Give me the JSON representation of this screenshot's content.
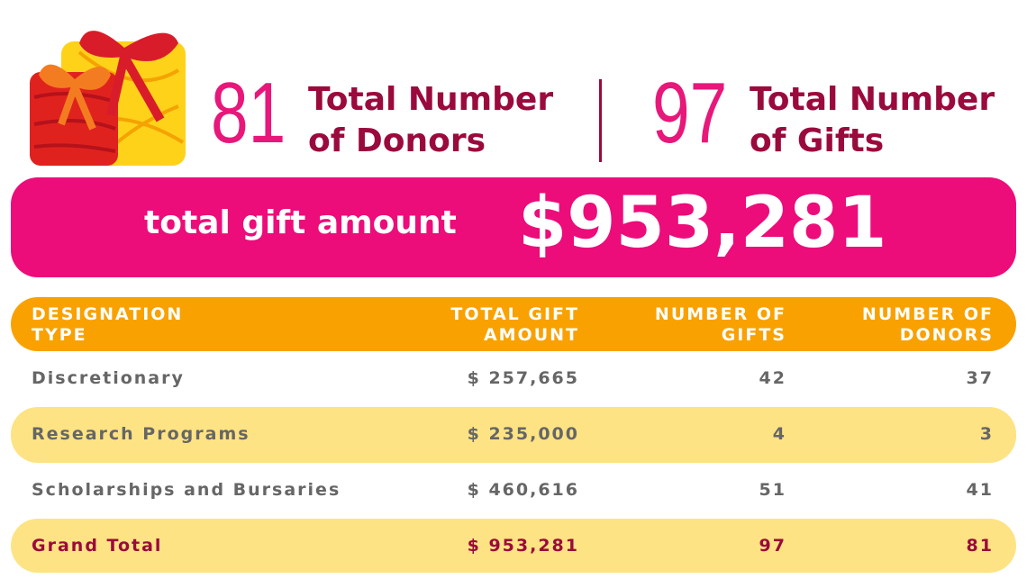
{
  "stats": [
    {
      "value": "81",
      "label_lines": [
        "Total Number",
        "of Donors"
      ]
    },
    {
      "value": "97",
      "label_lines": [
        "Total Number",
        "of Gifts"
      ]
    }
  ],
  "banner": {
    "label": "total gift amount",
    "amount": "$953,281"
  },
  "table": {
    "header": [
      [
        "DESIGNATION",
        "TYPE"
      ],
      [
        "TOTAL GIFT",
        "AMOUNT"
      ],
      [
        "NUMBER OF",
        "GIFTS"
      ],
      [
        "NUMBER OF",
        "DONORS"
      ]
    ],
    "rows": [
      [
        "Discretionary",
        "$  257,665",
        42,
        37
      ],
      [
        "Research Programs",
        "$ 235,000",
        4,
        3
      ],
      [
        "Scholarships and Bursaries",
        "$  460,616",
        51,
        41
      ]
    ],
    "total": [
      "Grand Total",
      "$   953,281",
      97,
      81
    ]
  }
}
